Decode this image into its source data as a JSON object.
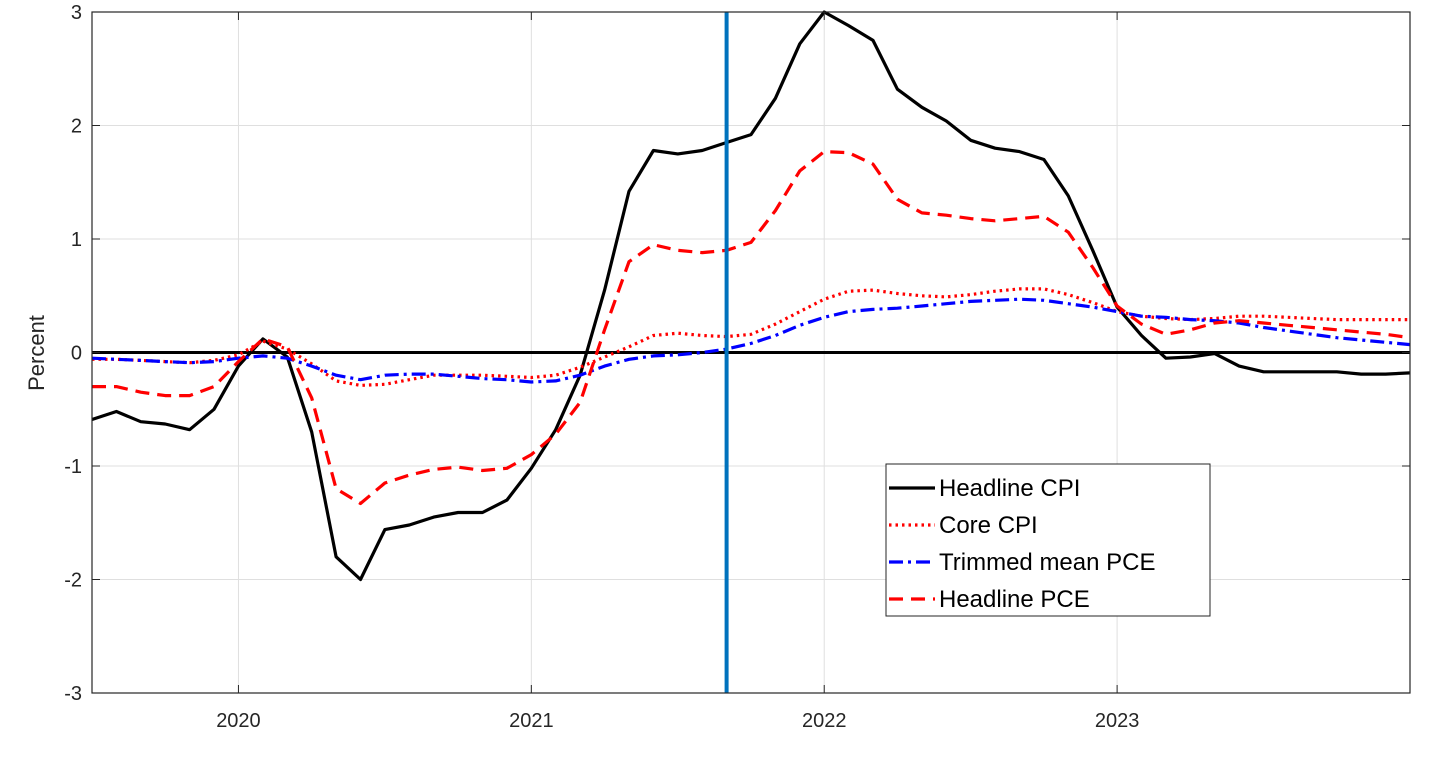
{
  "chart_data": {
    "type": "line",
    "title": "",
    "xlabel": "",
    "ylabel": "Percent",
    "xlim": [
      "2019-07",
      "2024-01"
    ],
    "ylim": [
      -3,
      3
    ],
    "x_ticks": [
      {
        "date": "2020-01",
        "label": "2020"
      },
      {
        "date": "2021-01",
        "label": "2021"
      },
      {
        "date": "2022-01",
        "label": "2022"
      },
      {
        "date": "2023-01",
        "label": "2023"
      }
    ],
    "y_ticks": [
      {
        "value": -3,
        "label": "-3"
      },
      {
        "value": -2,
        "label": "-2"
      },
      {
        "value": -1,
        "label": "-1"
      },
      {
        "value": 0,
        "label": "0"
      },
      {
        "value": 1,
        "label": "1"
      },
      {
        "value": 2,
        "label": "2"
      },
      {
        "value": 3,
        "label": "3"
      }
    ],
    "grid": true,
    "legend_position": "center-right",
    "zero_line": 0,
    "vertical_marker": {
      "date": "2021-09",
      "color": "#0072BD"
    },
    "x": [
      "2019-07",
      "2019-08",
      "2019-09",
      "2019-10",
      "2019-11",
      "2019-12",
      "2020-01",
      "2020-02",
      "2020-03",
      "2020-04",
      "2020-05",
      "2020-06",
      "2020-07",
      "2020-08",
      "2020-09",
      "2020-10",
      "2020-11",
      "2020-12",
      "2021-01",
      "2021-02",
      "2021-03",
      "2021-04",
      "2021-05",
      "2021-06",
      "2021-07",
      "2021-08",
      "2021-09",
      "2021-10",
      "2021-11",
      "2021-12",
      "2022-01",
      "2022-02",
      "2022-03",
      "2022-04",
      "2022-05",
      "2022-06",
      "2022-07",
      "2022-08",
      "2022-09",
      "2022-10",
      "2022-11",
      "2022-12",
      "2023-01",
      "2023-02",
      "2023-03",
      "2023-04",
      "2023-05",
      "2023-06",
      "2023-07",
      "2023-08",
      "2023-09",
      "2023-10",
      "2023-11",
      "2023-12",
      "2024-01"
    ],
    "series": [
      {
        "name": "Headline CPI",
        "color": "#000000",
        "style": "solid",
        "values": [
          -0.59,
          -0.52,
          -0.61,
          -0.63,
          -0.68,
          -0.5,
          -0.12,
          0.12,
          -0.04,
          -0.7,
          -1.8,
          -2.0,
          -1.56,
          -1.52,
          -1.45,
          -1.41,
          -1.41,
          -1.3,
          -1.02,
          -0.68,
          -0.2,
          0.55,
          1.42,
          1.78,
          1.75,
          1.78,
          1.85,
          1.92,
          2.24,
          2.72,
          3.0,
          2.88,
          2.75,
          2.32,
          2.16,
          2.04,
          1.87,
          1.8,
          1.77,
          1.7,
          1.38,
          0.9,
          0.4,
          0.15,
          -0.05,
          -0.04,
          -0.01,
          -0.12,
          -0.17,
          -0.17,
          -0.17,
          -0.17,
          -0.19,
          -0.19,
          -0.18
        ]
      },
      {
        "name": "Core CPI",
        "color": "#FF0000",
        "style": "dotted",
        "values": [
          -0.06,
          -0.06,
          -0.07,
          -0.08,
          -0.09,
          -0.07,
          -0.02,
          0.1,
          0.03,
          -0.1,
          -0.25,
          -0.29,
          -0.28,
          -0.24,
          -0.2,
          -0.2,
          -0.2,
          -0.21,
          -0.22,
          -0.2,
          -0.13,
          -0.04,
          0.05,
          0.15,
          0.17,
          0.15,
          0.14,
          0.16,
          0.25,
          0.36,
          0.47,
          0.54,
          0.55,
          0.52,
          0.5,
          0.49,
          0.51,
          0.54,
          0.56,
          0.56,
          0.51,
          0.44,
          0.36,
          0.32,
          0.3,
          0.29,
          0.3,
          0.32,
          0.32,
          0.31,
          0.3,
          0.29,
          0.29,
          0.29,
          0.29
        ]
      },
      {
        "name": "Trimmed mean PCE",
        "color": "#0000FF",
        "style": "dashdot",
        "values": [
          -0.05,
          -0.06,
          -0.07,
          -0.08,
          -0.09,
          -0.08,
          -0.05,
          -0.03,
          -0.05,
          -0.12,
          -0.2,
          -0.24,
          -0.2,
          -0.19,
          -0.19,
          -0.21,
          -0.23,
          -0.24,
          -0.26,
          -0.25,
          -0.2,
          -0.12,
          -0.06,
          -0.03,
          -0.02,
          0.0,
          0.03,
          0.08,
          0.15,
          0.24,
          0.31,
          0.36,
          0.38,
          0.39,
          0.41,
          0.43,
          0.45,
          0.46,
          0.47,
          0.46,
          0.43,
          0.4,
          0.36,
          0.32,
          0.31,
          0.29,
          0.28,
          0.26,
          0.22,
          0.19,
          0.16,
          0.13,
          0.11,
          0.09,
          0.07
        ]
      },
      {
        "name": "Headline PCE",
        "color": "#FF0000",
        "style": "dashed",
        "values": [
          -0.3,
          -0.3,
          -0.35,
          -0.38,
          -0.38,
          -0.3,
          -0.08,
          0.12,
          0.05,
          -0.4,
          -1.2,
          -1.33,
          -1.15,
          -1.08,
          -1.03,
          -1.01,
          -1.04,
          -1.02,
          -0.9,
          -0.72,
          -0.44,
          0.2,
          0.8,
          0.95,
          0.9,
          0.88,
          0.9,
          0.97,
          1.25,
          1.6,
          1.77,
          1.76,
          1.66,
          1.35,
          1.23,
          1.21,
          1.18,
          1.16,
          1.18,
          1.2,
          1.06,
          0.75,
          0.41,
          0.25,
          0.16,
          0.2,
          0.26,
          0.28,
          0.26,
          0.24,
          0.22,
          0.2,
          0.18,
          0.16,
          0.13
        ]
      }
    ]
  }
}
